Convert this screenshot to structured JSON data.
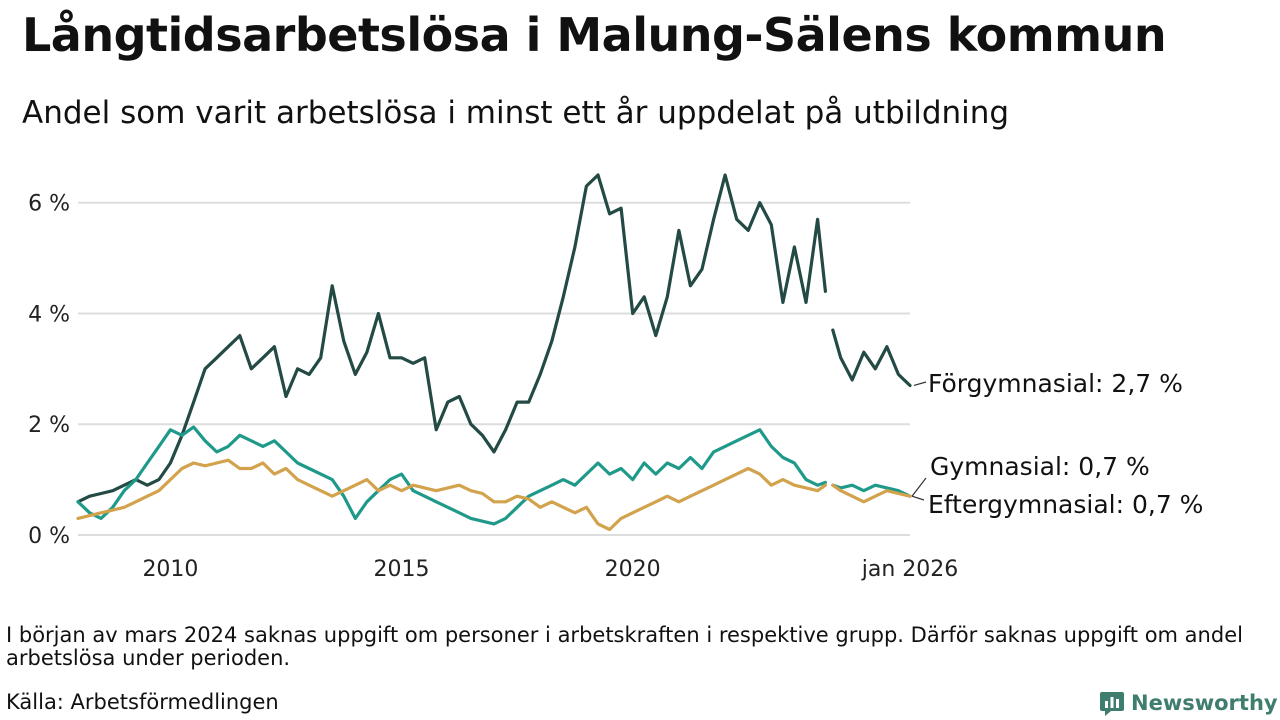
{
  "title": "Långtidsarbetslösa i Malung-Sälens kommun",
  "subtitle": "Andel som varit arbetslösa i minst ett år uppdelat på utbildning",
  "note": "I början av mars 2024 saknas uppgift om personer i arbetskraften i respektive grupp. Därför saknas uppgift om andel arbetslösa under perioden.",
  "source": "Källa: Arbetsförmedlingen",
  "brand": "Newsworthy",
  "colors": {
    "forgymnasial": "#234a44",
    "gymnasial": "#1f9a8a",
    "eftergymnasial": "#d2a24c",
    "grid": "#dddddd",
    "brand": "#3f7d6f"
  },
  "chart_data": {
    "type": "line",
    "title": "Långtidsarbetslösa i Malung-Sälens kommun",
    "xlabel": "",
    "ylabel": "",
    "xlim": [
      2008.0,
      2026.0
    ],
    "ylim": [
      0,
      6.5
    ],
    "yticks": [
      0,
      2,
      4,
      6
    ],
    "ytick_labels": [
      "0 %",
      "2 %",
      "4 %",
      "6 %"
    ],
    "xticks": [
      2010,
      2015,
      2020,
      2026.0
    ],
    "xtick_labels": [
      "2010",
      "2015",
      "2020",
      "jan 2026"
    ],
    "gap": [
      2024.17,
      2024.33
    ],
    "series": [
      {
        "name": "Förgymnasial",
        "label": "Förgymnasial: 2,7 %",
        "color_key": "forgymnasial",
        "points": [
          [
            2008.0,
            0.6
          ],
          [
            2008.25,
            0.7
          ],
          [
            2008.5,
            0.75
          ],
          [
            2008.75,
            0.8
          ],
          [
            2009.0,
            0.9
          ],
          [
            2009.25,
            1.0
          ],
          [
            2009.5,
            0.9
          ],
          [
            2009.75,
            1.0
          ],
          [
            2010.0,
            1.3
          ],
          [
            2010.25,
            1.8
          ],
          [
            2010.5,
            2.4
          ],
          [
            2010.75,
            3.0
          ],
          [
            2011.0,
            3.2
          ],
          [
            2011.25,
            3.4
          ],
          [
            2011.5,
            3.6
          ],
          [
            2011.75,
            3.0
          ],
          [
            2012.0,
            3.2
          ],
          [
            2012.25,
            3.4
          ],
          [
            2012.5,
            2.5
          ],
          [
            2012.75,
            3.0
          ],
          [
            2013.0,
            2.9
          ],
          [
            2013.25,
            3.2
          ],
          [
            2013.5,
            4.5
          ],
          [
            2013.75,
            3.5
          ],
          [
            2014.0,
            2.9
          ],
          [
            2014.25,
            3.3
          ],
          [
            2014.5,
            4.0
          ],
          [
            2014.75,
            3.2
          ],
          [
            2015.0,
            3.2
          ],
          [
            2015.25,
            3.1
          ],
          [
            2015.5,
            3.2
          ],
          [
            2015.75,
            1.9
          ],
          [
            2016.0,
            2.4
          ],
          [
            2016.25,
            2.5
          ],
          [
            2016.5,
            2.0
          ],
          [
            2016.75,
            1.8
          ],
          [
            2017.0,
            1.5
          ],
          [
            2017.25,
            1.9
          ],
          [
            2017.5,
            2.4
          ],
          [
            2017.75,
            2.4
          ],
          [
            2018.0,
            2.9
          ],
          [
            2018.25,
            3.5
          ],
          [
            2018.5,
            4.3
          ],
          [
            2018.75,
            5.2
          ],
          [
            2019.0,
            6.3
          ],
          [
            2019.25,
            6.5
          ],
          [
            2019.5,
            5.8
          ],
          [
            2019.75,
            5.9
          ],
          [
            2020.0,
            4.0
          ],
          [
            2020.25,
            4.3
          ],
          [
            2020.5,
            3.6
          ],
          [
            2020.75,
            4.3
          ],
          [
            2021.0,
            5.5
          ],
          [
            2021.25,
            4.5
          ],
          [
            2021.5,
            4.8
          ],
          [
            2021.75,
            5.7
          ],
          [
            2022.0,
            6.5
          ],
          [
            2022.25,
            5.7
          ],
          [
            2022.5,
            5.5
          ],
          [
            2022.75,
            6.0
          ],
          [
            2023.0,
            5.6
          ],
          [
            2023.25,
            4.2
          ],
          [
            2023.5,
            5.2
          ],
          [
            2023.75,
            4.2
          ],
          [
            2024.0,
            5.7
          ],
          [
            2024.17,
            4.4
          ],
          [
            2024.33,
            3.7
          ],
          [
            2024.5,
            3.2
          ],
          [
            2024.75,
            2.8
          ],
          [
            2025.0,
            3.3
          ],
          [
            2025.25,
            3.0
          ],
          [
            2025.5,
            3.4
          ],
          [
            2025.75,
            2.9
          ],
          [
            2026.0,
            2.7
          ]
        ]
      },
      {
        "name": "Gymnasial",
        "label": "Gymnasial: 0,7 %",
        "color_key": "gymnasial",
        "points": [
          [
            2008.0,
            0.6
          ],
          [
            2008.25,
            0.4
          ],
          [
            2008.5,
            0.3
          ],
          [
            2008.75,
            0.5
          ],
          [
            2009.0,
            0.8
          ],
          [
            2009.25,
            1.0
          ],
          [
            2009.5,
            1.3
          ],
          [
            2009.75,
            1.6
          ],
          [
            2010.0,
            1.9
          ],
          [
            2010.25,
            1.8
          ],
          [
            2010.5,
            1.95
          ],
          [
            2010.75,
            1.7
          ],
          [
            2011.0,
            1.5
          ],
          [
            2011.25,
            1.6
          ],
          [
            2011.5,
            1.8
          ],
          [
            2011.75,
            1.7
          ],
          [
            2012.0,
            1.6
          ],
          [
            2012.25,
            1.7
          ],
          [
            2012.5,
            1.5
          ],
          [
            2012.75,
            1.3
          ],
          [
            2013.0,
            1.2
          ],
          [
            2013.25,
            1.1
          ],
          [
            2013.5,
            1.0
          ],
          [
            2013.75,
            0.7
          ],
          [
            2014.0,
            0.3
          ],
          [
            2014.25,
            0.6
          ],
          [
            2014.5,
            0.8
          ],
          [
            2014.75,
            1.0
          ],
          [
            2015.0,
            1.1
          ],
          [
            2015.25,
            0.8
          ],
          [
            2015.5,
            0.7
          ],
          [
            2015.75,
            0.6
          ],
          [
            2016.0,
            0.5
          ],
          [
            2016.25,
            0.4
          ],
          [
            2016.5,
            0.3
          ],
          [
            2016.75,
            0.25
          ],
          [
            2017.0,
            0.2
          ],
          [
            2017.25,
            0.3
          ],
          [
            2017.5,
            0.5
          ],
          [
            2017.75,
            0.7
          ],
          [
            2018.0,
            0.8
          ],
          [
            2018.25,
            0.9
          ],
          [
            2018.5,
            1.0
          ],
          [
            2018.75,
            0.9
          ],
          [
            2019.0,
            1.1
          ],
          [
            2019.25,
            1.3
          ],
          [
            2019.5,
            1.1
          ],
          [
            2019.75,
            1.2
          ],
          [
            2020.0,
            1.0
          ],
          [
            2020.25,
            1.3
          ],
          [
            2020.5,
            1.1
          ],
          [
            2020.75,
            1.3
          ],
          [
            2021.0,
            1.2
          ],
          [
            2021.25,
            1.4
          ],
          [
            2021.5,
            1.2
          ],
          [
            2021.75,
            1.5
          ],
          [
            2022.0,
            1.6
          ],
          [
            2022.25,
            1.7
          ],
          [
            2022.5,
            1.8
          ],
          [
            2022.75,
            1.9
          ],
          [
            2023.0,
            1.6
          ],
          [
            2023.25,
            1.4
          ],
          [
            2023.5,
            1.3
          ],
          [
            2023.75,
            1.0
          ],
          [
            2024.0,
            0.9
          ],
          [
            2024.17,
            0.95
          ],
          [
            2024.33,
            0.9
          ],
          [
            2024.5,
            0.85
          ],
          [
            2024.75,
            0.9
          ],
          [
            2025.0,
            0.8
          ],
          [
            2025.25,
            0.9
          ],
          [
            2025.5,
            0.85
          ],
          [
            2025.75,
            0.8
          ],
          [
            2026.0,
            0.7
          ]
        ]
      },
      {
        "name": "Eftergymnasial",
        "label": "Eftergymnasial: 0,7 %",
        "color_key": "eftergymnasial",
        "points": [
          [
            2008.0,
            0.3
          ],
          [
            2008.25,
            0.35
          ],
          [
            2008.5,
            0.4
          ],
          [
            2008.75,
            0.45
          ],
          [
            2009.0,
            0.5
          ],
          [
            2009.25,
            0.6
          ],
          [
            2009.5,
            0.7
          ],
          [
            2009.75,
            0.8
          ],
          [
            2010.0,
            1.0
          ],
          [
            2010.25,
            1.2
          ],
          [
            2010.5,
            1.3
          ],
          [
            2010.75,
            1.25
          ],
          [
            2011.0,
            1.3
          ],
          [
            2011.25,
            1.35
          ],
          [
            2011.5,
            1.2
          ],
          [
            2011.75,
            1.2
          ],
          [
            2012.0,
            1.3
          ],
          [
            2012.25,
            1.1
          ],
          [
            2012.5,
            1.2
          ],
          [
            2012.75,
            1.0
          ],
          [
            2013.0,
            0.9
          ],
          [
            2013.25,
            0.8
          ],
          [
            2013.5,
            0.7
          ],
          [
            2013.75,
            0.8
          ],
          [
            2014.0,
            0.9
          ],
          [
            2014.25,
            1.0
          ],
          [
            2014.5,
            0.8
          ],
          [
            2014.75,
            0.9
          ],
          [
            2015.0,
            0.8
          ],
          [
            2015.25,
            0.9
          ],
          [
            2015.5,
            0.85
          ],
          [
            2015.75,
            0.8
          ],
          [
            2016.0,
            0.85
          ],
          [
            2016.25,
            0.9
          ],
          [
            2016.5,
            0.8
          ],
          [
            2016.75,
            0.75
          ],
          [
            2017.0,
            0.6
          ],
          [
            2017.25,
            0.6
          ],
          [
            2017.5,
            0.7
          ],
          [
            2017.75,
            0.65
          ],
          [
            2018.0,
            0.5
          ],
          [
            2018.25,
            0.6
          ],
          [
            2018.5,
            0.5
          ],
          [
            2018.75,
            0.4
          ],
          [
            2019.0,
            0.5
          ],
          [
            2019.25,
            0.2
          ],
          [
            2019.5,
            0.1
          ],
          [
            2019.75,
            0.3
          ],
          [
            2020.0,
            0.4
          ],
          [
            2020.25,
            0.5
          ],
          [
            2020.5,
            0.6
          ],
          [
            2020.75,
            0.7
          ],
          [
            2021.0,
            0.6
          ],
          [
            2021.25,
            0.7
          ],
          [
            2021.5,
            0.8
          ],
          [
            2021.75,
            0.9
          ],
          [
            2022.0,
            1.0
          ],
          [
            2022.25,
            1.1
          ],
          [
            2022.5,
            1.2
          ],
          [
            2022.75,
            1.1
          ],
          [
            2023.0,
            0.9
          ],
          [
            2023.25,
            1.0
          ],
          [
            2023.5,
            0.9
          ],
          [
            2023.75,
            0.85
          ],
          [
            2024.0,
            0.8
          ],
          [
            2024.17,
            0.9
          ],
          [
            2024.33,
            0.9
          ],
          [
            2024.5,
            0.8
          ],
          [
            2024.75,
            0.7
          ],
          [
            2025.0,
            0.6
          ],
          [
            2025.25,
            0.7
          ],
          [
            2025.5,
            0.8
          ],
          [
            2025.75,
            0.75
          ],
          [
            2026.0,
            0.7
          ]
        ]
      }
    ]
  }
}
